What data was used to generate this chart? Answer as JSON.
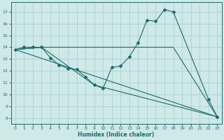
{
  "xlabel": "Humidex (Indice chaleur)",
  "xlim": [
    -0.5,
    23.5
  ],
  "ylim": [
    7.5,
    17.8
  ],
  "xticks": [
    0,
    1,
    2,
    3,
    4,
    5,
    6,
    7,
    8,
    9,
    10,
    11,
    12,
    13,
    14,
    15,
    16,
    17,
    18,
    19,
    20,
    21,
    22,
    23
  ],
  "yticks": [
    8,
    9,
    10,
    11,
    12,
    13,
    14,
    15,
    16,
    17
  ],
  "bg_color": "#cfe8e8",
  "line_color": "#1e6b6b",
  "grid_color": "#b0d5d5",
  "line1_x": [
    0,
    1,
    2,
    3,
    4,
    5,
    6,
    7,
    8,
    9,
    10,
    11,
    12,
    13,
    14,
    15,
    16,
    17,
    18,
    22,
    23
  ],
  "line1_y": [
    13.8,
    14.0,
    14.0,
    14.0,
    13.1,
    12.5,
    12.2,
    12.1,
    11.5,
    10.8,
    10.5,
    12.3,
    12.4,
    13.2,
    14.4,
    16.3,
    16.2,
    17.2,
    17.0,
    9.6,
    8.1
  ],
  "line2_x": [
    0,
    3,
    18,
    23
  ],
  "line2_y": [
    13.8,
    14.0,
    14.0,
    8.1
  ],
  "line3_x": [
    0,
    3,
    9,
    23
  ],
  "line3_y": [
    13.8,
    14.0,
    10.8,
    8.1
  ],
  "line4_x": [
    0,
    23
  ],
  "line4_y": [
    13.8,
    8.1
  ]
}
